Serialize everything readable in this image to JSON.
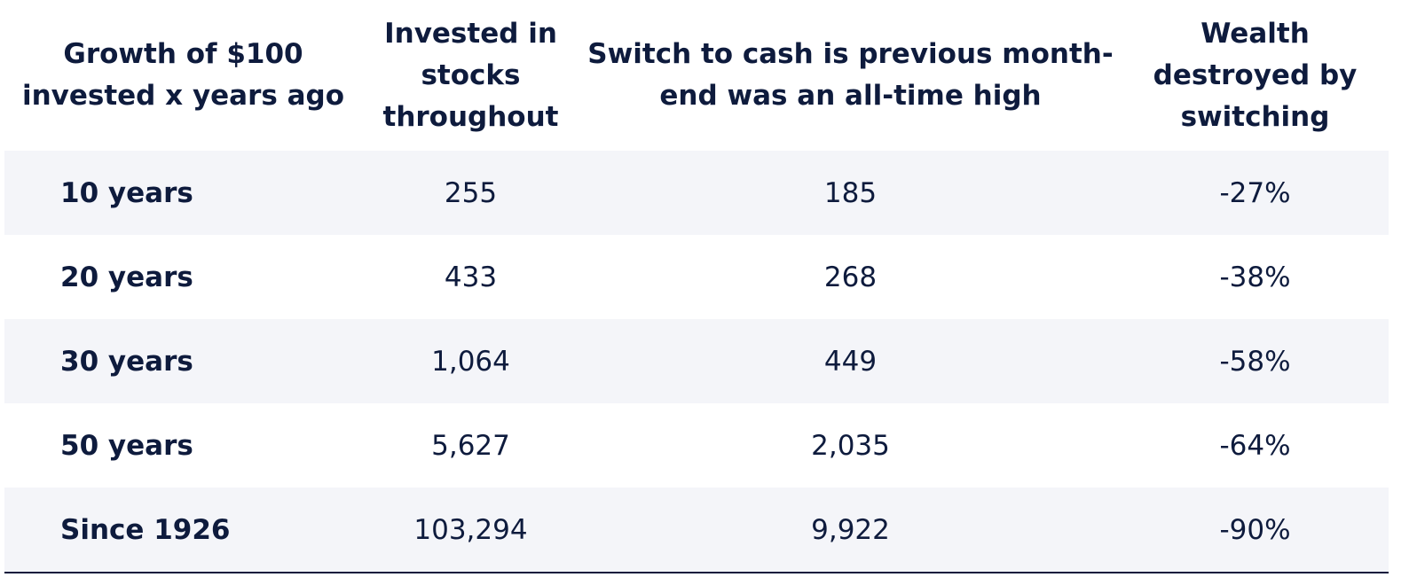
{
  "chart_data": {
    "type": "table",
    "columns": [
      "Growth of $100 invested x years ago",
      "Invested in stocks throughout",
      "Switch to cash is previous month-end was an all-time high",
      "Wealth destroyed by switching"
    ],
    "rows": [
      {
        "period": "10 years",
        "invested": "255",
        "switch": "185",
        "destroyed": "-27%"
      },
      {
        "period": "20 years",
        "invested": "433",
        "switch": "268",
        "destroyed": "-38%"
      },
      {
        "period": "30 years",
        "invested": "1,064",
        "switch": "449",
        "destroyed": "-58%"
      },
      {
        "period": "50 years",
        "invested": "5,627",
        "switch": "2,035",
        "destroyed": "-64%"
      },
      {
        "period": "Since 1926",
        "invested": "103,294",
        "switch": "9,922",
        "destroyed": "-90%"
      }
    ],
    "values": {
      "invested": [
        255,
        433,
        1064,
        5627,
        103294
      ],
      "switch": [
        185,
        268,
        449,
        2035,
        9922
      ],
      "destroyed_pct": [
        -27,
        -38,
        -58,
        -64,
        -90
      ]
    }
  },
  "colors": {
    "text": "#0e1b3d",
    "stripe": "#f4f5f9",
    "background": "#ffffff"
  }
}
